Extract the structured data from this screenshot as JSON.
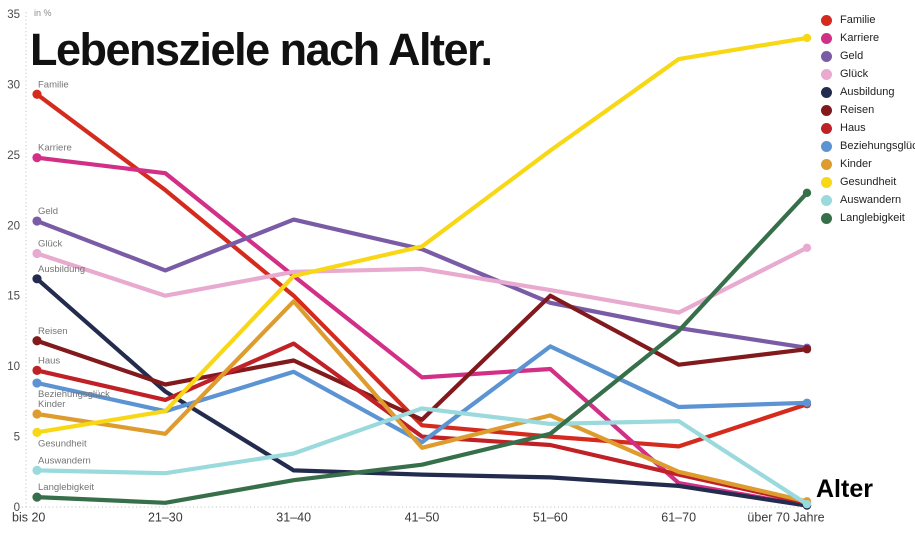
{
  "title": "Lebensziele nach Alter.",
  "y_axis": {
    "unit_label": "in %",
    "ticks": [
      0,
      5,
      10,
      15,
      20,
      25,
      30,
      35
    ],
    "max": 35
  },
  "x_axis": {
    "label": "Alter"
  },
  "chart_data": {
    "type": "line",
    "title": "Lebensziele nach Alter.",
    "ylabel": "in %",
    "ylim": [
      0,
      35
    ],
    "grid": false,
    "legend_position": "right",
    "categories": [
      "bis 20",
      "21–30",
      "31–40",
      "41–50",
      "51–60",
      "61–70",
      "über 70 Jahre"
    ],
    "series": [
      {
        "name": "Familie",
        "color": "#d52b1e",
        "values": [
          29.3,
          22.5,
          15.0,
          5.8,
          5.0,
          4.3,
          7.3
        ]
      },
      {
        "name": "Karriere",
        "color": "#d23087",
        "values": [
          24.8,
          23.7,
          16.4,
          9.2,
          9.8,
          1.7,
          0.1
        ]
      },
      {
        "name": "Geld",
        "color": "#7a5ca6",
        "values": [
          20.3,
          16.8,
          20.4,
          18.3,
          14.5,
          12.7,
          11.3
        ]
      },
      {
        "name": "Glück",
        "color": "#e9aacf",
        "values": [
          18.0,
          15.0,
          16.7,
          16.9,
          15.4,
          13.8,
          18.4
        ]
      },
      {
        "name": "Ausbildung",
        "color": "#232c4e",
        "values": [
          16.2,
          8.2,
          2.6,
          2.3,
          2.1,
          1.5,
          0.1
        ]
      },
      {
        "name": "Reisen",
        "color": "#82191c",
        "values": [
          11.8,
          8.7,
          10.4,
          6.2,
          15.0,
          10.1,
          11.2
        ]
      },
      {
        "name": "Haus",
        "color": "#c02127",
        "values": [
          9.7,
          7.6,
          11.6,
          5.0,
          4.4,
          2.3,
          0.3
        ]
      },
      {
        "name": "Beziehungsglück",
        "color": "#5b93d3",
        "values": [
          8.8,
          6.8,
          9.6,
          4.6,
          11.4,
          7.1,
          7.4
        ]
      },
      {
        "name": "Kinder",
        "color": "#de9c2f",
        "values": [
          6.6,
          5.2,
          14.6,
          4.2,
          6.5,
          2.5,
          0.4
        ]
      },
      {
        "name": "Gesundheit",
        "color": "#f8d714",
        "values": [
          5.3,
          6.8,
          16.4,
          18.5,
          25.3,
          31.8,
          33.3
        ]
      },
      {
        "name": "Auswandern",
        "color": "#9adadd",
        "values": [
          2.6,
          2.4,
          3.8,
          7.0,
          5.9,
          6.1,
          0.2
        ]
      },
      {
        "name": "Langlebigkeit",
        "color": "#376f4b",
        "values": [
          0.7,
          0.3,
          1.9,
          3.0,
          5.2,
          12.5,
          22.3
        ]
      }
    ]
  }
}
